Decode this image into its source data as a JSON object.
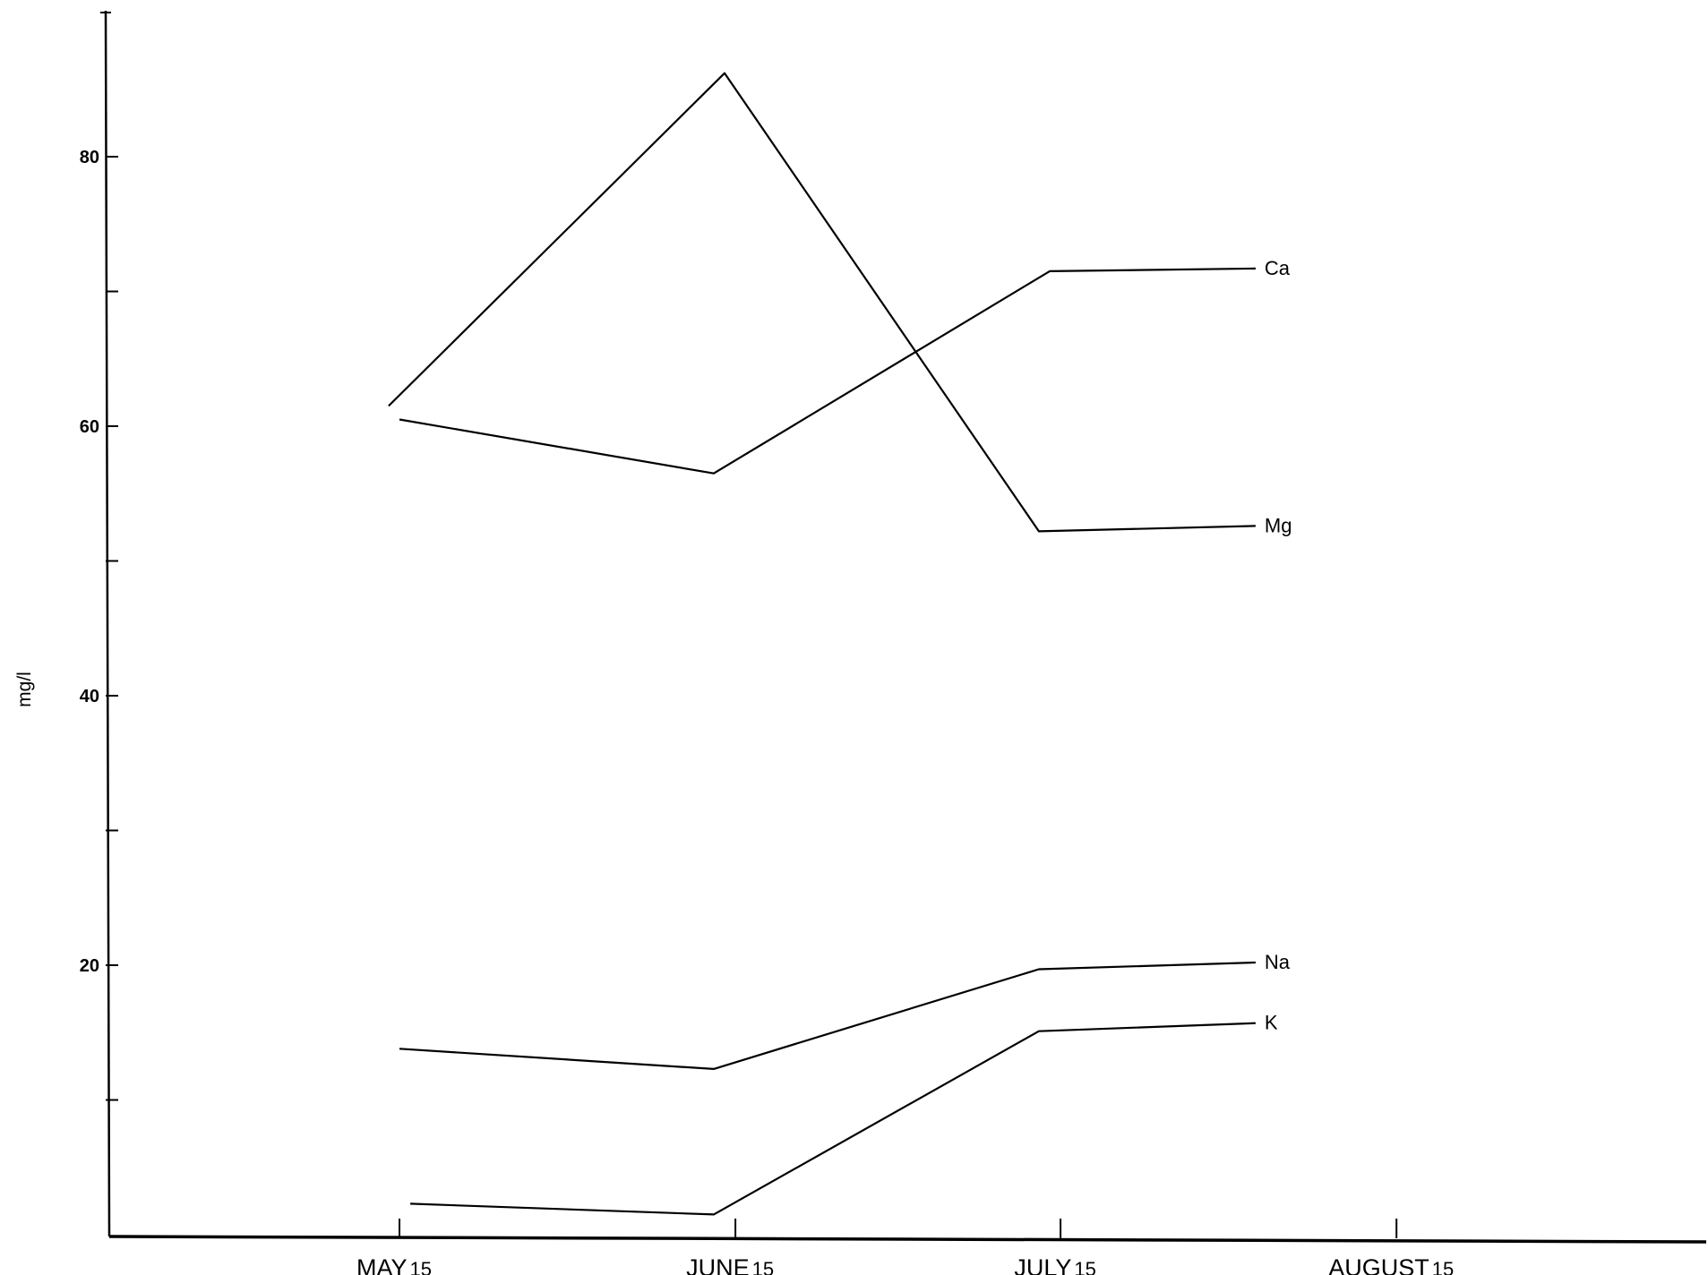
{
  "chart_data": {
    "type": "line",
    "ylabel": "mg/l",
    "xlabel": "",
    "ylim": [
      0,
      90
    ],
    "yticks": [
      20,
      40,
      60,
      80
    ],
    "yticks_minor": [
      10,
      30,
      50,
      70
    ],
    "x_ticks": [
      {
        "month": "MAY",
        "day": "15"
      },
      {
        "month": "JUNE",
        "day": "15"
      },
      {
        "month": "JULY",
        "day": "15"
      },
      {
        "month": "AUGUST",
        "day": "15"
      }
    ],
    "series": [
      {
        "name": "Ca",
        "x": [
          15,
          44,
          75,
          94
        ],
        "y": [
          60.5,
          56.5,
          71.5,
          71.7
        ]
      },
      {
        "name": "Mg",
        "x": [
          14,
          45,
          74,
          94
        ],
        "y": [
          61.5,
          86.2,
          52.2,
          52.6
        ]
      },
      {
        "name": "Na",
        "x": [
          15,
          44,
          74,
          94
        ],
        "y": [
          13.8,
          12.3,
          19.7,
          20.2
        ]
      },
      {
        "name": "K",
        "x": [
          16,
          44,
          74,
          94
        ],
        "y": [
          2.3,
          1.5,
          15.1,
          15.7
        ]
      }
    ]
  }
}
